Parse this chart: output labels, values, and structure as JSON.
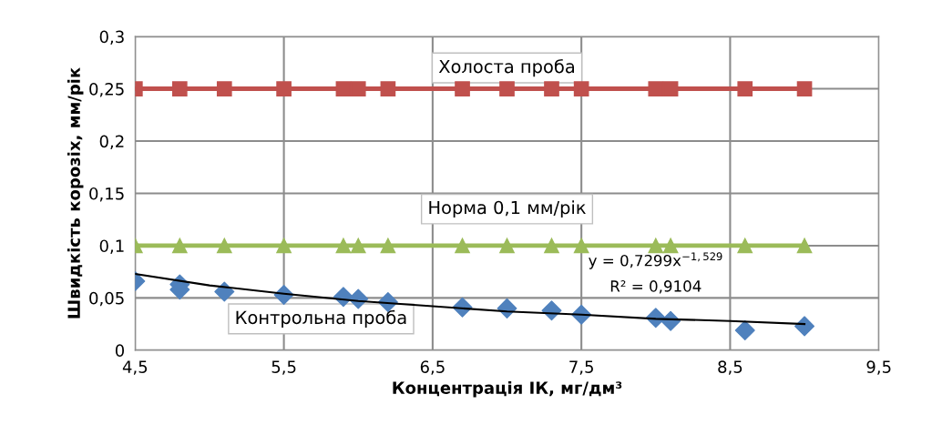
{
  "chart_data": {
    "type": "line",
    "xlabel": "Концентрація ІК, мг/дм³",
    "ylabel": "Швидкість корозіх, мм/рік",
    "xlim": [
      4.5,
      9.5
    ],
    "xticks": [
      {
        "value": 4.5,
        "label": "4,5"
      },
      {
        "value": 5.5,
        "label": "5,5"
      },
      {
        "value": 6.5,
        "label": "6,5"
      },
      {
        "value": 7.5,
        "label": "7,5"
      },
      {
        "value": 8.5,
        "label": "8,5"
      },
      {
        "value": 9.5,
        "label": "9,5"
      }
    ],
    "ylim": [
      0,
      0.3
    ],
    "yticks": [
      0,
      {
        "value": 0.05,
        "label": "0,05"
      },
      {
        "value": 0.1,
        "label": "0,1"
      },
      {
        "value": 0.15,
        "label": "0,15"
      },
      {
        "value": 0.2,
        "label": "0,2"
      },
      {
        "value": 0.25,
        "label": "0,25"
      },
      {
        "value": 0.3,
        "label": "0,3"
      }
    ],
    "grid": true,
    "legend": false,
    "series": [
      {
        "name": "Холоста проба",
        "type": "line",
        "marker": "square",
        "color": "#c0504d",
        "x": [
          4.5,
          4.8,
          5.1,
          5.5,
          5.9,
          6.0,
          6.2,
          6.7,
          7.0,
          7.3,
          7.5,
          8.0,
          8.1,
          8.6,
          9.0
        ],
        "values": [
          0.25,
          0.25,
          0.25,
          0.25,
          0.25,
          0.25,
          0.25,
          0.25,
          0.25,
          0.25,
          0.25,
          0.25,
          0.25,
          0.25,
          0.25
        ]
      },
      {
        "name": "Норма 0,1 мм/рік",
        "type": "line",
        "marker": "triangle",
        "color": "#9bbb59",
        "x": [
          4.5,
          4.8,
          5.1,
          5.5,
          5.9,
          6.0,
          6.2,
          6.7,
          7.0,
          7.3,
          7.5,
          8.0,
          8.1,
          8.6,
          9.0
        ],
        "values": [
          0.1,
          0.1,
          0.1,
          0.1,
          0.1,
          0.1,
          0.1,
          0.1,
          0.1,
          0.1,
          0.1,
          0.1,
          0.1,
          0.1,
          0.1
        ]
      },
      {
        "name": "Контрольна проба",
        "type": "scatter",
        "marker": "diamond",
        "color": "#4f81bd",
        "x": [
          4.5,
          4.8,
          4.8,
          5.1,
          5.5,
          5.9,
          6.0,
          6.2,
          6.7,
          7.0,
          7.3,
          7.5,
          8.0,
          8.1,
          8.6,
          9.0
        ],
        "values": [
          0.066,
          0.063,
          0.058,
          0.056,
          0.053,
          0.051,
          0.049,
          0.046,
          0.041,
          0.04,
          0.038,
          0.034,
          0.031,
          0.028,
          0.019,
          0.023
        ]
      },
      {
        "marker": "none",
        "color": "#000000",
        "x": [
          4.5,
          5.0,
          5.5,
          6.0,
          6.5,
          7.0,
          7.5,
          8.0,
          8.5,
          9.0
        ],
        "values": [
          0.073,
          0.062,
          0.054,
          0.047,
          0.042,
          0.037,
          0.034,
          0.03,
          0.028,
          0.025
        ]
      }
    ],
    "annotations": [
      "y = 0,7299x$^{−1,529}$",
      "R² = 0,9104"
    ]
  }
}
